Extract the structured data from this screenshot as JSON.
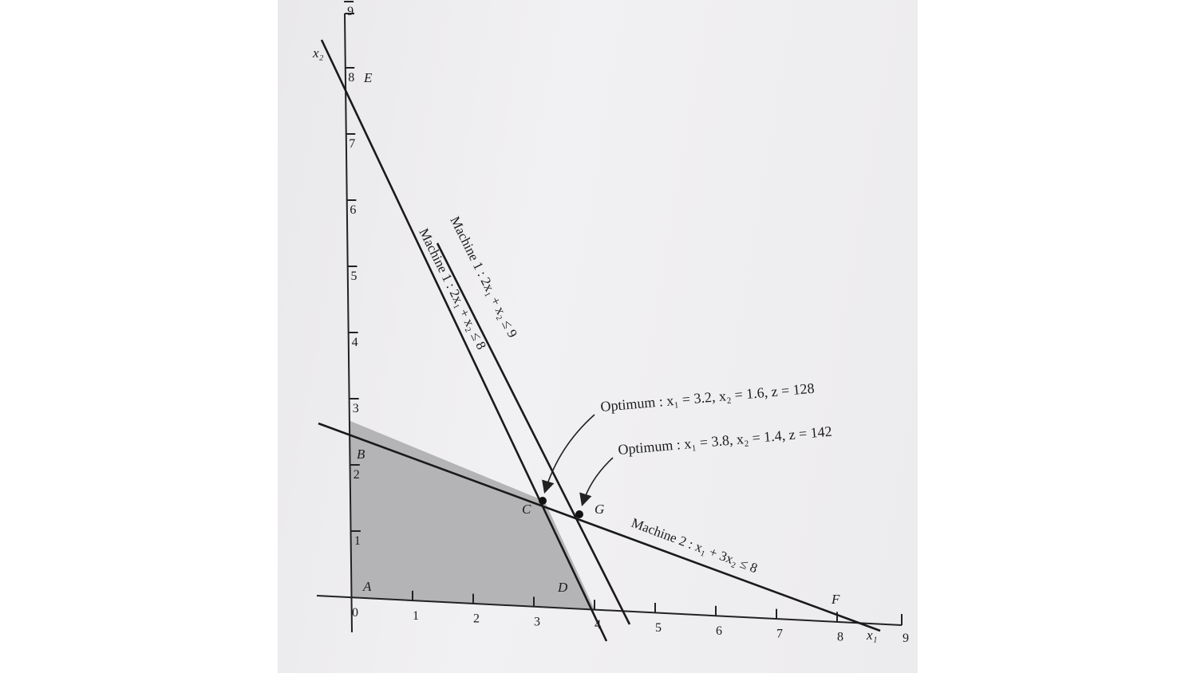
{
  "axes": {
    "x_name": "x₁",
    "y_name": "x₂",
    "x_ticks": [
      "0",
      "1",
      "2",
      "3",
      "4",
      "5",
      "6",
      "7",
      "8",
      "9"
    ],
    "y_ticks": [
      "1",
      "2",
      "3",
      "4",
      "5",
      "6",
      "7",
      "8",
      "9"
    ]
  },
  "feasible_region": {
    "vertices": [
      [
        0,
        0
      ],
      [
        0,
        2.667
      ],
      [
        3.2,
        1.6
      ],
      [
        4,
        0
      ]
    ],
    "color": "#a9a9ab"
  },
  "constraints": [
    {
      "label": "Machine 1 : 2x₁ + x₂ ≤ 8",
      "x_intercept": 4,
      "y_intercept": 8
    },
    {
      "label": "Machine 1 : 2x₁ + x₂ ≤ 9",
      "x_intercept": 4.5,
      "y_intercept": 9
    },
    {
      "label": "Machine 2 : x₁ + 3x₂ ≤ 8",
      "x_intercept": 8,
      "y_intercept": 2.667
    }
  ],
  "points": [
    {
      "label": "A",
      "x": 0,
      "y": 0
    },
    {
      "label": "B",
      "x": 0,
      "y": 2.667
    },
    {
      "label": "C",
      "x": 3.2,
      "y": 1.6
    },
    {
      "label": "D",
      "x": 4,
      "y": 0
    },
    {
      "label": "E",
      "x": 0,
      "y": 8
    },
    {
      "label": "F",
      "x": 8,
      "y": 0
    },
    {
      "label": "G",
      "x": 3.8,
      "y": 1.4
    }
  ],
  "annotations": [
    {
      "text": "Optimum : x₁ = 3.2, x₂ = 1.6, z = 128",
      "target": "C"
    },
    {
      "text": "Optimum : x₁ = 3.8, x₂ = 1.4, z = 142",
      "target": "G"
    }
  ]
}
